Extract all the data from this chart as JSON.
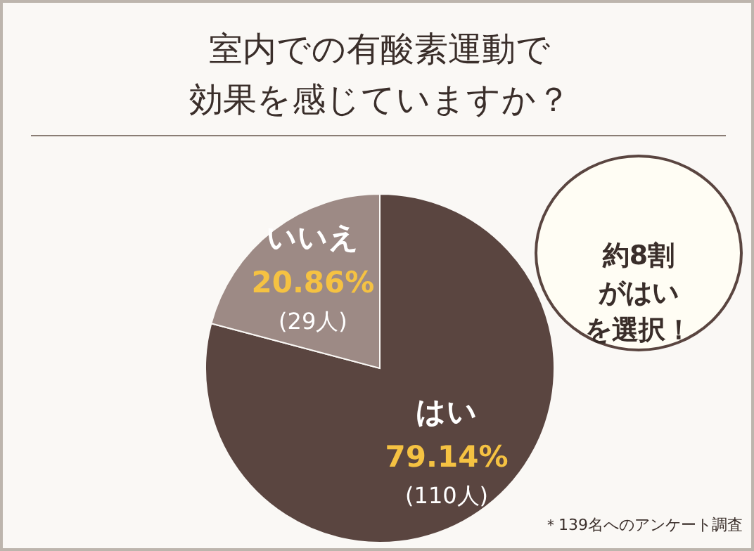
{
  "chart_data": {
    "type": "pie",
    "title": "室内での有酸素運動で効果を感じていますか？",
    "categories": [
      "はい",
      "いいえ"
    ],
    "values": [
      79.14,
      20.86
    ],
    "colors": [
      "#5a4540",
      "#9d8a85"
    ],
    "value_labels": [
      "79.14%\n(110人)",
      "20.86%\n(29人)"
    ],
    "annotations": [
      "約8割がはいを選択！",
      "＊139名へのアンケート調査"
    ],
    "legend": false
  }
}
